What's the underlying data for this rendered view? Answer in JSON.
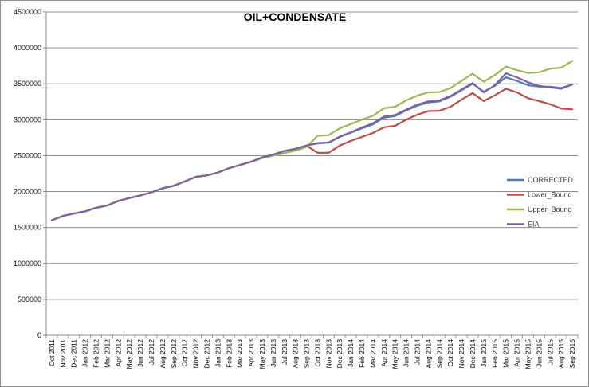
{
  "chart_data": {
    "type": "line",
    "title": "OIL+CONDENSATE",
    "xlabel": "",
    "ylabel": "",
    "ylim": [
      0,
      4500000
    ],
    "yticks": [
      "0",
      "500000",
      "1000000",
      "1500000",
      "2000000",
      "2500000",
      "3000000",
      "3500000",
      "4000000",
      "4500000"
    ],
    "grid": "horizontal",
    "legend_position": "right",
    "categories": [
      "Oct 2011",
      "Nov 2011",
      "Dec 2011",
      "Jan 2012",
      "Feb 2012",
      "Mar 2012",
      "Apr 2012",
      "May 2012",
      "Jun 2012",
      "Jul 2012",
      "Aug 2012",
      "Sep 2012",
      "Oct 2012",
      "Nov 2012",
      "Dec 2012",
      "Jan 2013",
      "Feb 2013",
      "Mar 2013",
      "Apr 2013",
      "May 2013",
      "Jun 2013",
      "Jul 2013",
      "Aug 2013",
      "Sep 2013",
      "Oct 2013",
      "Nov 2013",
      "Dec 2013",
      "Jan 2014",
      "Feb 2014",
      "Mar 2014",
      "Apr 2014",
      "May 2014",
      "Jun 2014",
      "Jul 2014",
      "Aug 2014",
      "Sep 2014",
      "Oct 2014",
      "Nov 2014",
      "Dec 2014",
      "Jan 2015",
      "Feb 2015",
      "Mar 2015",
      "Apr 2015",
      "May 2015",
      "Jun 2015",
      "Jul 2015",
      "Aug 2015",
      "Sep 2015"
    ],
    "series": [
      {
        "name": "CORRECTED",
        "color": "#4a7ebb",
        "values": [
          1600000,
          1660000,
          1695000,
          1725000,
          1775000,
          1805000,
          1870000,
          1910000,
          1945000,
          1990000,
          2045000,
          2080000,
          2140000,
          2205000,
          2225000,
          2265000,
          2325000,
          2370000,
          2415000,
          2475000,
          2515000,
          2565000,
          2595000,
          2640000,
          2670000,
          2680000,
          2760000,
          2820000,
          2880000,
          2935000,
          3030000,
          3050000,
          3130000,
          3195000,
          3240000,
          3255000,
          3320000,
          3410000,
          3500000,
          3390000,
          3470000,
          3590000,
          3540000,
          3480000,
          3460000,
          3460000,
          3440000,
          3490000
        ]
      },
      {
        "name": "Lower_Bound",
        "color": "#be4b48",
        "values": [
          1600000,
          1660000,
          1695000,
          1725000,
          1775000,
          1805000,
          1870000,
          1910000,
          1945000,
          1990000,
          2045000,
          2080000,
          2140000,
          2205000,
          2225000,
          2265000,
          2325000,
          2370000,
          2415000,
          2475000,
          2515000,
          2565000,
          2595000,
          2640000,
          2540000,
          2540000,
          2640000,
          2705000,
          2760000,
          2815000,
          2895000,
          2915000,
          3000000,
          3070000,
          3120000,
          3125000,
          3180000,
          3280000,
          3370000,
          3260000,
          3340000,
          3430000,
          3380000,
          3300000,
          3260000,
          3215000,
          3155000,
          3145000
        ]
      },
      {
        "name": "Upper_Bound",
        "color": "#98b954",
        "values": [
          1600000,
          1660000,
          1695000,
          1725000,
          1775000,
          1805000,
          1870000,
          1910000,
          1945000,
          1990000,
          2045000,
          2080000,
          2140000,
          2205000,
          2225000,
          2265000,
          2325000,
          2370000,
          2415000,
          2465000,
          2500000,
          2535000,
          2570000,
          2620000,
          2775000,
          2785000,
          2880000,
          2940000,
          3000000,
          3055000,
          3160000,
          3180000,
          3270000,
          3335000,
          3380000,
          3385000,
          3440000,
          3540000,
          3640000,
          3530000,
          3620000,
          3740000,
          3690000,
          3650000,
          3660000,
          3710000,
          3725000,
          3820000
        ]
      },
      {
        "name": "EIA",
        "color": "#7d60a0",
        "values": [
          1600000,
          1660000,
          1695000,
          1725000,
          1775000,
          1805000,
          1870000,
          1910000,
          1945000,
          1990000,
          2045000,
          2080000,
          2140000,
          2205000,
          2225000,
          2265000,
          2325000,
          2370000,
          2415000,
          2475000,
          2515000,
          2565000,
          2595000,
          2640000,
          2675000,
          2685000,
          2765000,
          2825000,
          2890000,
          2950000,
          3045000,
          3065000,
          3140000,
          3210000,
          3255000,
          3270000,
          3330000,
          3420000,
          3510000,
          3380000,
          3480000,
          3645000,
          3590000,
          3520000,
          3470000,
          3450000,
          3430000,
          3490000
        ]
      }
    ]
  }
}
